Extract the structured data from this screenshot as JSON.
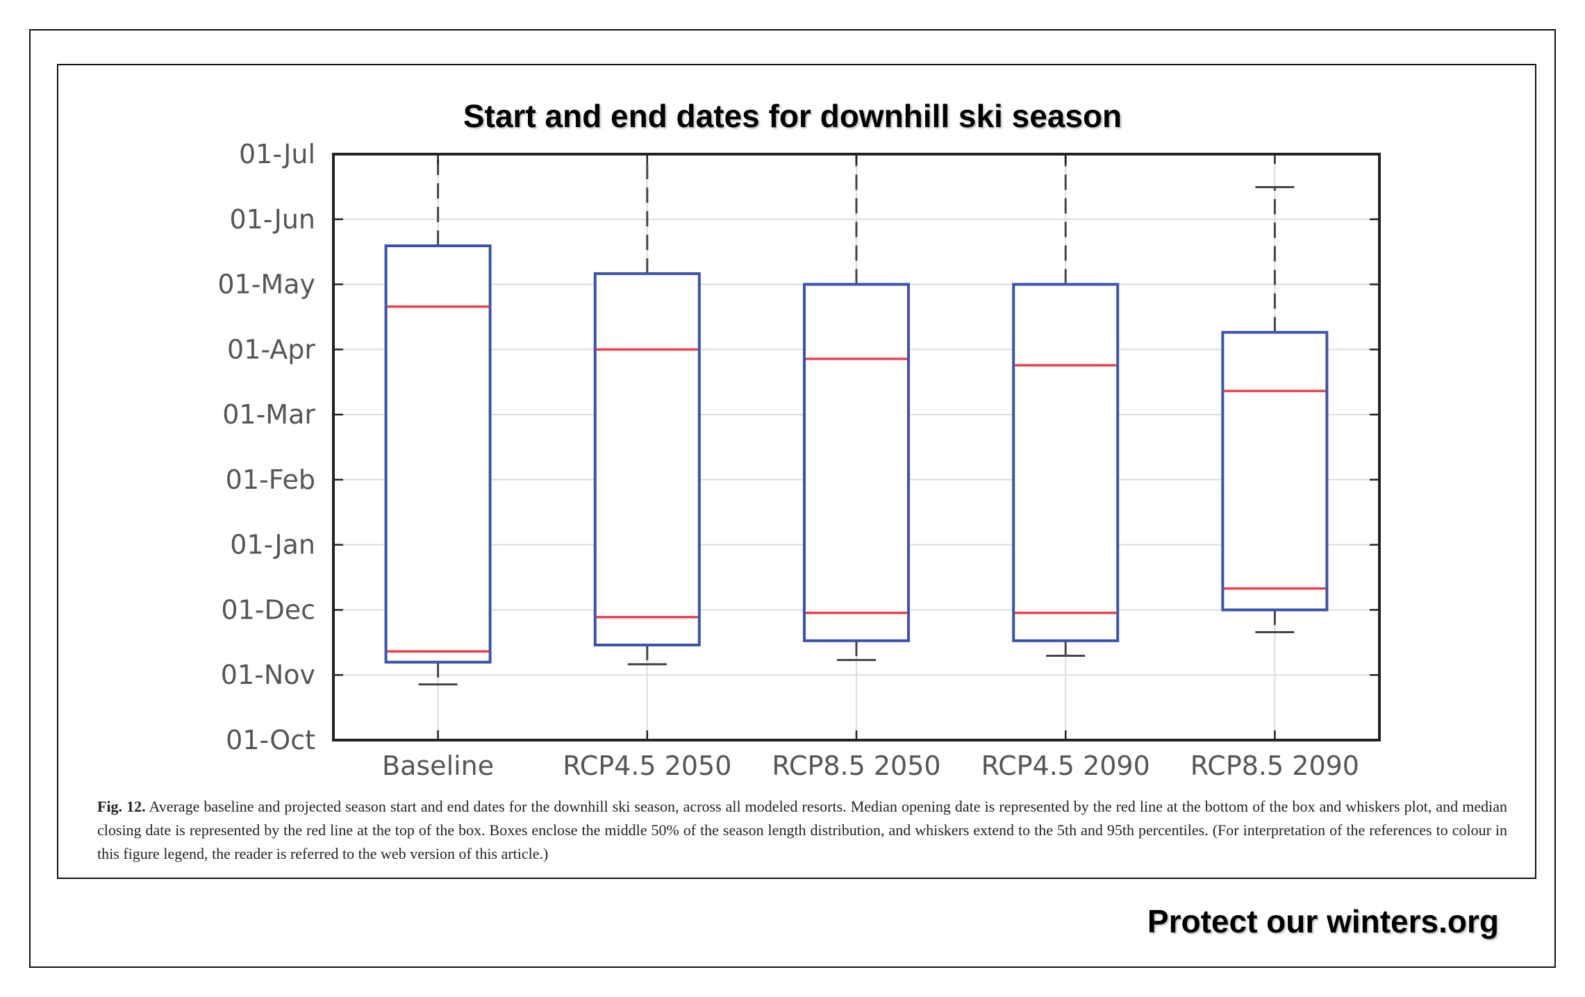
{
  "title": "Start and end dates for downhill ski season",
  "caption": {
    "label": "Fig. 12.",
    "text": "Average baseline and projected season start and end dates for the downhill ski season, across all modeled resorts. Median opening date is represented by the red line at the bottom of the box and whiskers plot, and median closing date is represented by the red line at the top of the box. Boxes enclose the middle 50% of the season length distribution, and whiskers extend to the 5th and 95th percentiles. (For interpretation of the references to colour in this figure legend, the reader is referred to the web version of this article.)"
  },
  "footer": {
    "brand": "Protect our winters.org"
  },
  "colors": {
    "box": "#3a52b0",
    "median": "#e8414a",
    "whisker": "#444444",
    "grid": "#dddddd",
    "axis": "#222222",
    "tick_label": "#555555"
  },
  "chart_data": {
    "type": "box",
    "title": "Start and end dates for downhill ski season",
    "xlabel": "",
    "ylabel": "",
    "y_ticks": [
      "01-Oct",
      "01-Nov",
      "01-Dec",
      "01-Jan",
      "01-Feb",
      "01-Mar",
      "01-Apr",
      "01-May",
      "01-Jun",
      "01-Jul"
    ],
    "ylim": [
      "01-Oct",
      "01-Jul"
    ],
    "grid": true,
    "categories": [
      "Baseline",
      "RCP4.5 2050",
      "RCP8.5 2050",
      "RCP4.5 2090",
      "RCP8.5 2090"
    ],
    "series": [
      {
        "category": "Baseline",
        "whisker_low": "27-Oct",
        "box_low": "07-Nov",
        "opening_median": "12-Nov",
        "closing_median": "21-Apr",
        "box_high": "19-May",
        "whisker_high": "26-Jul"
      },
      {
        "category": "RCP4.5 2050",
        "whisker_low": "06-Nov",
        "box_low": "15-Nov",
        "opening_median": "28-Nov",
        "closing_median": "01-Apr",
        "box_high": "06-May",
        "whisker_high": "05-Jul"
      },
      {
        "category": "RCP8.5 2050",
        "whisker_low": "08-Nov",
        "box_low": "17-Nov",
        "opening_median": "30-Nov",
        "closing_median": "27-Mar",
        "box_high": "01-May",
        "whisker_high": "03-Jul"
      },
      {
        "category": "RCP4.5 2090",
        "whisker_low": "10-Nov",
        "box_low": "17-Nov",
        "opening_median": "30-Nov",
        "closing_median": "24-Mar",
        "box_high": "01-May",
        "whisker_high": "04-Jul"
      },
      {
        "category": "RCP8.5 2090",
        "whisker_low": "21-Nov",
        "box_low": "01-Dec",
        "opening_median": "11-Dec",
        "closing_median": "12-Mar",
        "box_high": "09-Apr",
        "whisker_high": "16-Jun"
      }
    ]
  }
}
